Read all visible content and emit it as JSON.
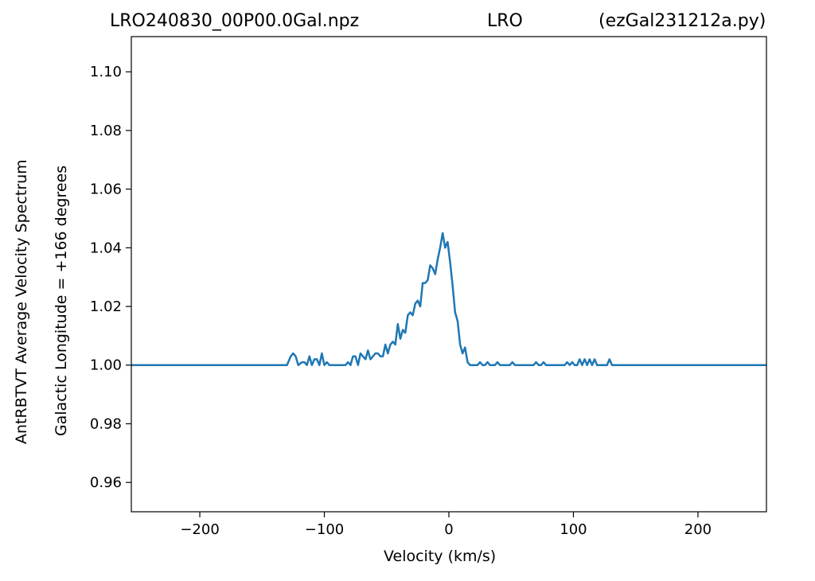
{
  "chart_data": {
    "type": "line",
    "title_left": "LRO240830_00P00.0Gal.npz",
    "title_center": "LRO",
    "title_right": "(ezGal231212a.py)",
    "xlabel": "Velocity (km/s)",
    "ylabel_outer": "AntRBTVT Average Velocity Spectrum",
    "ylabel_inner": "Galactic Longitude = +166 degrees",
    "xlim": [
      -255,
      255
    ],
    "ylim": [
      0.95,
      1.112
    ],
    "xticks": [
      -200,
      -100,
      0,
      100,
      200
    ],
    "xtick_labels": [
      "−200",
      "−100",
      "0",
      "100",
      "200"
    ],
    "yticks": [
      0.96,
      0.98,
      1.0,
      1.02,
      1.04,
      1.06,
      1.08,
      1.1
    ],
    "ytick_labels": [
      "0.96",
      "0.98",
      "1.00",
      "1.02",
      "1.04",
      "1.06",
      "1.08",
      "1.10"
    ],
    "grid": false,
    "line_color": "#1f77b4",
    "series": [
      {
        "x": [
          -255,
          -130,
          -127,
          -125,
          -123,
          -121,
          -118,
          -116,
          -114,
          -112,
          -110,
          -108,
          -106,
          -104,
          -102,
          -100,
          -98,
          -96,
          -94,
          -90,
          -86,
          -83,
          -81,
          -79,
          -77,
          -75,
          -73,
          -71,
          -69,
          -67,
          -65,
          -63,
          -61,
          -59,
          -57,
          -55,
          -53,
          -51,
          -49,
          -47,
          -45,
          -43,
          -41,
          -39,
          -37,
          -35,
          -33,
          -31,
          -29,
          -27,
          -25,
          -23,
          -21,
          -19,
          -17,
          -15,
          -13,
          -11,
          -9,
          -7,
          -5,
          -3,
          -1,
          1,
          3,
          5,
          7,
          9,
          11,
          13,
          15,
          17,
          19,
          21,
          23,
          25,
          27,
          29,
          31,
          33,
          35,
          37,
          39,
          41,
          43,
          45,
          47,
          49,
          51,
          53,
          55,
          60,
          65,
          68,
          70,
          72,
          74,
          76,
          78,
          80,
          85,
          90,
          93,
          95,
          97,
          99,
          101,
          103,
          105,
          107,
          109,
          111,
          113,
          115,
          117,
          119,
          121,
          125,
          127,
          129,
          131,
          140,
          255
        ],
        "y": [
          1.0,
          1.0,
          1.003,
          1.004,
          1.003,
          1.0,
          1.001,
          1.001,
          1.0,
          1.003,
          1.0,
          1.002,
          1.002,
          1.0,
          1.004,
          1.0,
          1.001,
          1.0,
          1.0,
          1.0,
          1.0,
          1.0,
          1.001,
          1.0,
          1.003,
          1.003,
          1.0,
          1.004,
          1.003,
          1.002,
          1.005,
          1.002,
          1.003,
          1.004,
          1.004,
          1.003,
          1.003,
          1.007,
          1.004,
          1.007,
          1.008,
          1.007,
          1.014,
          1.009,
          1.012,
          1.011,
          1.017,
          1.018,
          1.017,
          1.021,
          1.022,
          1.02,
          1.028,
          1.028,
          1.029,
          1.034,
          1.033,
          1.031,
          1.036,
          1.04,
          1.045,
          1.04,
          1.042,
          1.035,
          1.027,
          1.018,
          1.015,
          1.007,
          1.004,
          1.006,
          1.001,
          1.0,
          1.0,
          1.0,
          1.0,
          1.001,
          1.0,
          1.0,
          1.001,
          1.0,
          1.0,
          1.0,
          1.001,
          1.0,
          1.0,
          1.0,
          1.0,
          1.0,
          1.001,
          1.0,
          1.0,
          1.0,
          1.0,
          1.0,
          1.001,
          1.0,
          1.0,
          1.001,
          1.0,
          1.0,
          1.0,
          1.0,
          1.0,
          1.001,
          1.0,
          1.001,
          1.0,
          1.0,
          1.002,
          1.0,
          1.002,
          1.0,
          1.002,
          1.0,
          1.002,
          1.0,
          1.0,
          1.0,
          1.0,
          1.002,
          1.0,
          1.0,
          1.0
        ]
      }
    ]
  }
}
